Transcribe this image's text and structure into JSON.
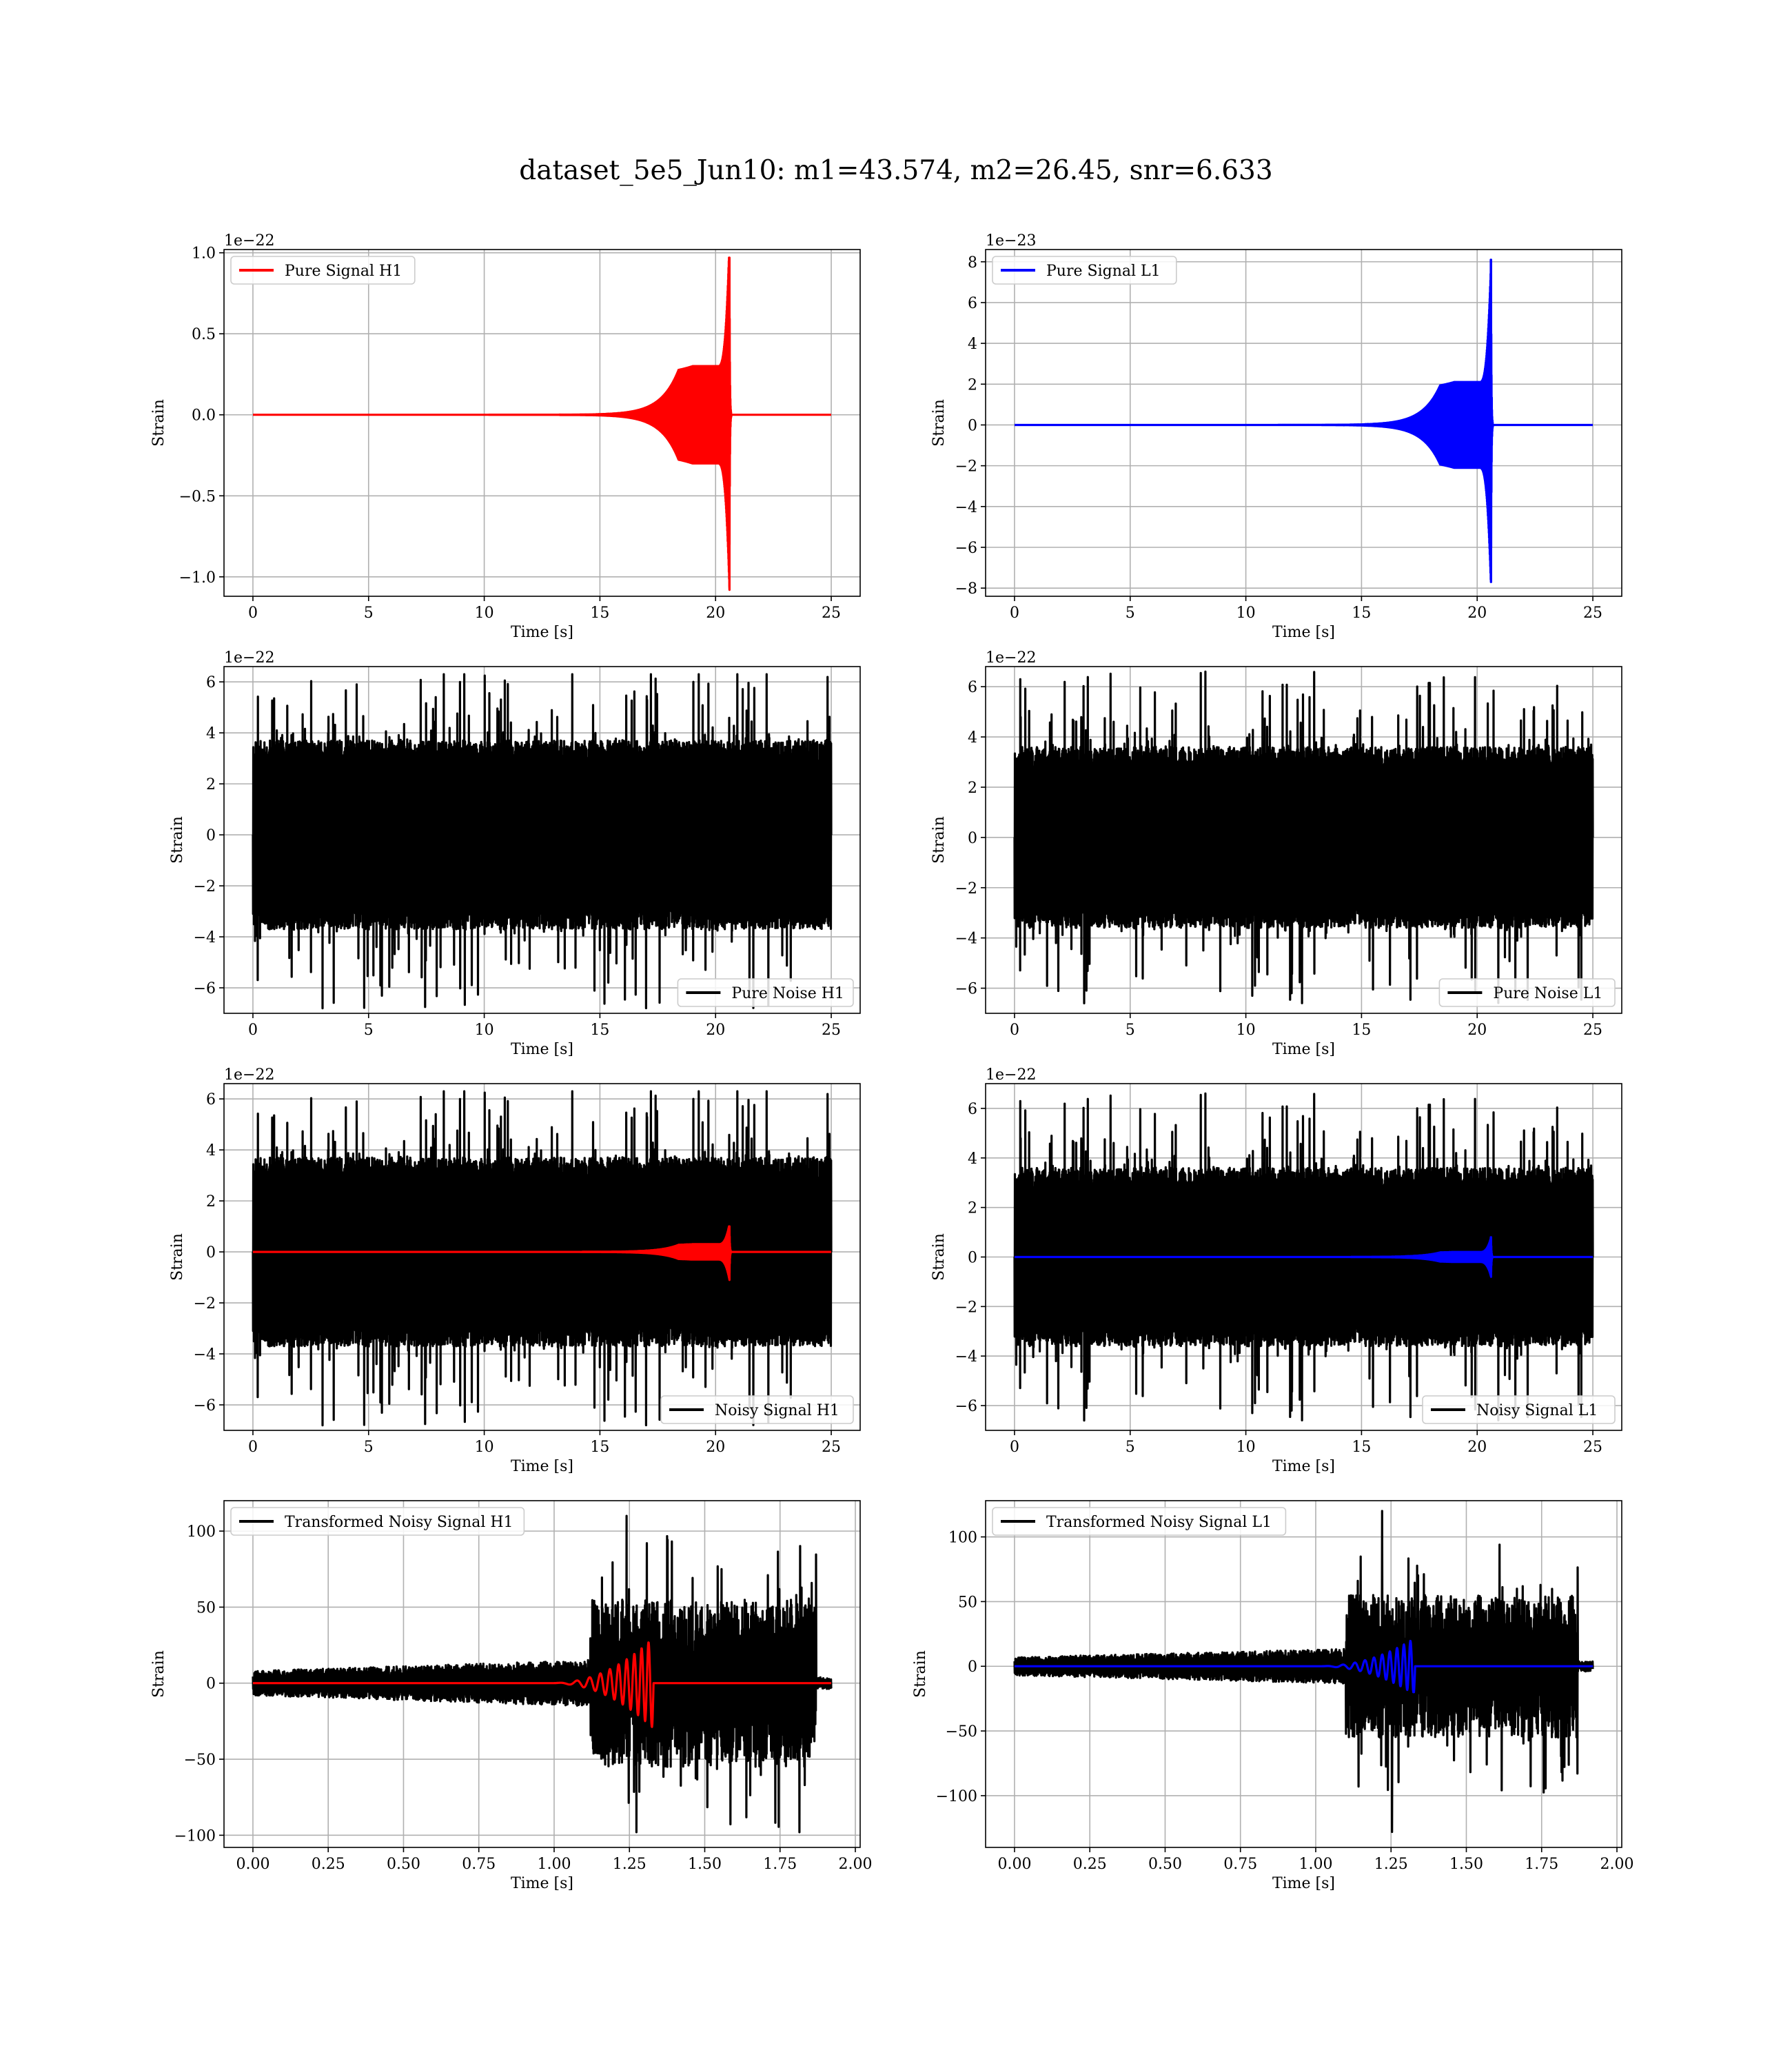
{
  "figure": {
    "title": "dataset_5e5_Jun10: m1=43.574, m2=26.45, snr=6.633"
  },
  "colors": {
    "h1": "#ff0000",
    "l1": "#0000ff",
    "noise": "#000000",
    "grid": "#b0b0b0"
  },
  "chart_data": [
    {
      "id": "pure-signal-h1",
      "type": "line",
      "title": "",
      "xlabel": "Time [s]",
      "ylabel": "Strain",
      "offset_text": "1e−22",
      "xlim": [
        -1.25,
        26.25
      ],
      "ylim": [
        -1.12,
        1.02
      ],
      "xticks": [
        0,
        5,
        10,
        15,
        20,
        25
      ],
      "xtick_labels": [
        "0",
        "5",
        "10",
        "15",
        "20",
        "25"
      ],
      "yticks": [
        -1.0,
        -0.5,
        0.0,
        0.5,
        1.0
      ],
      "ytick_labels": [
        "−1.0",
        "−0.5",
        "0.0",
        "0.5",
        "1.0"
      ],
      "grid": true,
      "legend_position": "upper-left",
      "series": [
        {
          "name": "Pure Signal H1",
          "color": "#ff0000",
          "kind": "chirp",
          "t_start": 0,
          "t_end": 25,
          "t_merger": 20.6,
          "peak_pos": 0.97,
          "peak_neg": -1.08,
          "plateau": 0.3
        }
      ]
    },
    {
      "id": "pure-signal-l1",
      "type": "line",
      "title": "",
      "xlabel": "Time [s]",
      "ylabel": "Strain",
      "offset_text": "1e−23",
      "xlim": [
        -1.25,
        26.25
      ],
      "ylim": [
        -8.4,
        8.6
      ],
      "xticks": [
        0,
        5,
        10,
        15,
        20,
        25
      ],
      "xtick_labels": [
        "0",
        "5",
        "10",
        "15",
        "20",
        "25"
      ],
      "yticks": [
        -8,
        -6,
        -4,
        -2,
        0,
        2,
        4,
        6,
        8
      ],
      "ytick_labels": [
        "−8",
        "−6",
        "−4",
        "−2",
        "0",
        "2",
        "4",
        "6",
        "8"
      ],
      "grid": true,
      "legend_position": "upper-left",
      "series": [
        {
          "name": "Pure Signal L1",
          "color": "#0000ff",
          "kind": "chirp",
          "t_start": 0,
          "t_end": 25,
          "t_merger": 20.6,
          "peak_pos": 8.1,
          "peak_neg": -7.7,
          "plateau": 2.1
        }
      ]
    },
    {
      "id": "pure-noise-h1",
      "type": "line",
      "title": "",
      "xlabel": "Time [s]",
      "ylabel": "Strain",
      "offset_text": "1e−22",
      "xlim": [
        -1.25,
        26.25
      ],
      "ylim": [
        -7.0,
        6.6
      ],
      "xticks": [
        0,
        5,
        10,
        15,
        20,
        25
      ],
      "xtick_labels": [
        "0",
        "5",
        "10",
        "15",
        "20",
        "25"
      ],
      "yticks": [
        -6,
        -4,
        -2,
        0,
        2,
        4,
        6
      ],
      "ytick_labels": [
        "−6",
        "−4",
        "−2",
        "0",
        "2",
        "4",
        "6"
      ],
      "grid": true,
      "legend_position": "lower-right",
      "series": [
        {
          "name": "Pure Noise H1",
          "color": "#000000",
          "kind": "noise",
          "t_start": 0,
          "t_end": 25,
          "core": 3.7,
          "max": 6.3,
          "min": -6.8,
          "seed": 11
        }
      ]
    },
    {
      "id": "pure-noise-l1",
      "type": "line",
      "title": "",
      "xlabel": "Time [s]",
      "ylabel": "Strain",
      "offset_text": "1e−22",
      "xlim": [
        -1.25,
        26.25
      ],
      "ylim": [
        -7.0,
        6.8
      ],
      "xticks": [
        0,
        5,
        10,
        15,
        20,
        25
      ],
      "xtick_labels": [
        "0",
        "5",
        "10",
        "15",
        "20",
        "25"
      ],
      "yticks": [
        -6,
        -4,
        -2,
        0,
        2,
        4,
        6
      ],
      "ytick_labels": [
        "−6",
        "−4",
        "−2",
        "0",
        "2",
        "4",
        "6"
      ],
      "grid": true,
      "legend_position": "lower-right",
      "series": [
        {
          "name": "Pure Noise L1",
          "color": "#000000",
          "kind": "noise",
          "t_start": 0,
          "t_end": 25,
          "core": 3.6,
          "max": 6.6,
          "min": -6.6,
          "seed": 23
        }
      ]
    },
    {
      "id": "noisy-signal-h1",
      "type": "line",
      "title": "",
      "xlabel": "Time [s]",
      "ylabel": "Strain",
      "offset_text": "1e−22",
      "xlim": [
        -1.25,
        26.25
      ],
      "ylim": [
        -7.0,
        6.6
      ],
      "xticks": [
        0,
        5,
        10,
        15,
        20,
        25
      ],
      "xtick_labels": [
        "0",
        "5",
        "10",
        "15",
        "20",
        "25"
      ],
      "yticks": [
        -6,
        -4,
        -2,
        0,
        2,
        4,
        6
      ],
      "ytick_labels": [
        "−6",
        "−4",
        "−2",
        "0",
        "2",
        "4",
        "6"
      ],
      "grid": true,
      "legend_position": "lower-right",
      "series": [
        {
          "name": "Noisy Signal H1",
          "color": "#000000",
          "kind": "noise",
          "t_start": 0,
          "t_end": 25,
          "core": 3.7,
          "max": 6.3,
          "min": -6.8,
          "seed": 11
        },
        {
          "name": "",
          "color": "#ff0000",
          "kind": "chirp",
          "t_start": 0,
          "t_end": 25,
          "t_merger": 20.6,
          "peak_pos": 1.0,
          "peak_neg": -1.1,
          "plateau": 0.3
        }
      ]
    },
    {
      "id": "noisy-signal-l1",
      "type": "line",
      "title": "",
      "xlabel": "Time [s]",
      "ylabel": "Strain",
      "offset_text": "1e−22",
      "xlim": [
        -1.25,
        26.25
      ],
      "ylim": [
        -7.0,
        7.0
      ],
      "xticks": [
        0,
        5,
        10,
        15,
        20,
        25
      ],
      "xtick_labels": [
        "0",
        "5",
        "10",
        "15",
        "20",
        "25"
      ],
      "yticks": [
        -6,
        -4,
        -2,
        0,
        2,
        4,
        6
      ],
      "ytick_labels": [
        "−6",
        "−4",
        "−2",
        "0",
        "2",
        "4",
        "6"
      ],
      "grid": true,
      "legend_position": "lower-right",
      "series": [
        {
          "name": "Noisy Signal L1",
          "color": "#000000",
          "kind": "noise",
          "t_start": 0,
          "t_end": 25,
          "core": 3.6,
          "max": 6.6,
          "min": -6.6,
          "seed": 23
        },
        {
          "name": "",
          "color": "#0000ff",
          "kind": "chirp",
          "t_start": 0,
          "t_end": 25,
          "t_merger": 20.6,
          "peak_pos": 0.8,
          "peak_neg": -0.8,
          "plateau": 0.2
        }
      ]
    },
    {
      "id": "transformed-noisy-signal-h1",
      "type": "line",
      "title": "",
      "xlabel": "Time [s]",
      "ylabel": "Strain",
      "offset_text": "",
      "xlim": [
        -0.096,
        2.016
      ],
      "ylim": [
        -108,
        120
      ],
      "xticks": [
        0,
        0.25,
        0.5,
        0.75,
        1.0,
        1.25,
        1.5,
        1.75,
        2.0
      ],
      "xtick_labels": [
        "0.00",
        "0.25",
        "0.50",
        "0.75",
        "1.00",
        "1.25",
        "1.50",
        "1.75",
        "2.00"
      ],
      "yticks": [
        -100,
        -50,
        0,
        50,
        100
      ],
      "ytick_labels": [
        "−100",
        "−50",
        "0",
        "50",
        "100"
      ],
      "grid": true,
      "legend_position": "upper-left",
      "series": [
        {
          "name": "Transformed Noisy Signal H1",
          "color": "#000000",
          "kind": "tnoise",
          "t_start": 0,
          "t_end": 1.92,
          "t_jump": 1.12,
          "t_drop": 1.87,
          "pre_amp": 8,
          "post_amp": 55,
          "max": 110,
          "min": -98,
          "seed": 31
        },
        {
          "name": "",
          "color": "#ff0000",
          "kind": "tchirp",
          "t_start": 0,
          "t_end": 1.92,
          "t_merger": 1.33,
          "t_chirp_start": 0.98,
          "peak_pos": 27,
          "peak_neg": -30,
          "cycles": 10
        }
      ]
    },
    {
      "id": "transformed-noisy-signal-l1",
      "type": "line",
      "title": "",
      "xlabel": "Time [s]",
      "ylabel": "Strain",
      "offset_text": "",
      "xlim": [
        -0.096,
        2.016
      ],
      "ylim": [
        -140,
        128
      ],
      "xticks": [
        0,
        0.25,
        0.5,
        0.75,
        1.0,
        1.25,
        1.5,
        1.75,
        2.0
      ],
      "xtick_labels": [
        "0.00",
        "0.25",
        "0.50",
        "0.75",
        "1.00",
        "1.25",
        "1.50",
        "1.75",
        "2.00"
      ],
      "yticks": [
        -100,
        -50,
        0,
        50,
        100
      ],
      "ytick_labels": [
        "−100",
        "−50",
        "0",
        "50",
        "100"
      ],
      "grid": true,
      "legend_position": "upper-left",
      "series": [
        {
          "name": "Transformed Noisy Signal L1",
          "color": "#000000",
          "kind": "tnoise",
          "t_start": 0,
          "t_end": 1.92,
          "t_jump": 1.1,
          "t_drop": 1.87,
          "pre_amp": 7,
          "post_amp": 55,
          "max": 120,
          "min": -128,
          "seed": 47
        },
        {
          "name": "",
          "color": "#0000ff",
          "kind": "tchirp",
          "t_start": 0,
          "t_end": 1.92,
          "t_merger": 1.33,
          "t_chirp_start": 1.0,
          "peak_pos": 22,
          "peak_neg": -20,
          "cycles": 10
        }
      ]
    }
  ]
}
